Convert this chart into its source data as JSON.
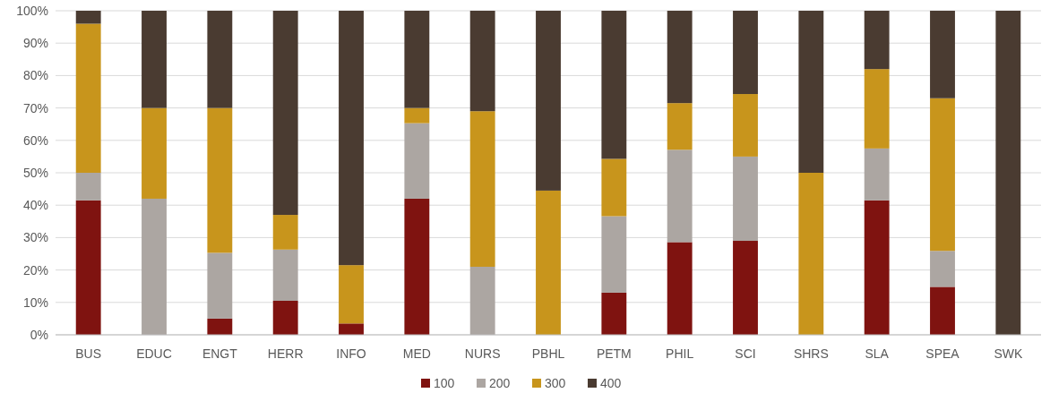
{
  "chart_data": {
    "type": "bar",
    "stacked": true,
    "categories": [
      "BUS",
      "EDUC",
      "ENGT",
      "HERR",
      "INFO",
      "MED",
      "NURS",
      "PBHL",
      "PETM",
      "PHIL",
      "SCI",
      "SHRS",
      "SLA",
      "SPEA",
      "SWK"
    ],
    "series": [
      {
        "name": "100",
        "color": "#7f1310",
        "values": [
          41.5,
          0,
          5,
          10.5,
          3.5,
          42,
          0,
          0,
          13,
          28.6,
          29,
          0,
          41.5,
          14.8,
          0
        ]
      },
      {
        "name": "200",
        "color": "#aca6a2",
        "values": [
          8.5,
          42,
          20.3,
          15.8,
          0,
          23.3,
          21,
          0,
          23.6,
          28.5,
          26,
          0,
          16,
          11.1,
          0
        ]
      },
      {
        "name": "300",
        "color": "#c8951c",
        "values": [
          46,
          28,
          44.7,
          10.7,
          18,
          4.7,
          48,
          44.5,
          17.7,
          14.4,
          19.3,
          50,
          24.5,
          47.1,
          0
        ]
      },
      {
        "name": "400",
        "color": "#4a3b31",
        "values": [
          4,
          30,
          30,
          63,
          78.5,
          30,
          31,
          55.5,
          45.7,
          28.5,
          25.7,
          50,
          18,
          27,
          100
        ]
      }
    ],
    "ylim": [
      0,
      100
    ],
    "yticks": [
      {
        "value": 0,
        "label": "0%"
      },
      {
        "value": 10,
        "label": "10%"
      },
      {
        "value": 20,
        "label": "20%"
      },
      {
        "value": 30,
        "label": "30%"
      },
      {
        "value": 40,
        "label": "40%"
      },
      {
        "value": 50,
        "label": "50%"
      },
      {
        "value": 60,
        "label": "60%"
      },
      {
        "value": 70,
        "label": "70%"
      },
      {
        "value": 80,
        "label": "80%"
      },
      {
        "value": 90,
        "label": "90%"
      },
      {
        "value": 100,
        "label": "100%"
      }
    ],
    "grid": "y",
    "legend": "bottom"
  }
}
